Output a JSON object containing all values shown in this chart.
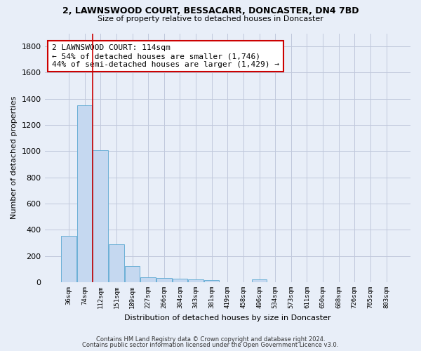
{
  "title1": "2, LAWNSWOOD COURT, BESSACARR, DONCASTER, DN4 7BD",
  "title2": "Size of property relative to detached houses in Doncaster",
  "xlabel": "Distribution of detached houses by size in Doncaster",
  "ylabel": "Number of detached properties",
  "categories": [
    "36sqm",
    "74sqm",
    "112sqm",
    "151sqm",
    "189sqm",
    "227sqm",
    "266sqm",
    "304sqm",
    "343sqm",
    "381sqm",
    "419sqm",
    "458sqm",
    "496sqm",
    "534sqm",
    "573sqm",
    "611sqm",
    "650sqm",
    "688sqm",
    "726sqm",
    "765sqm",
    "803sqm"
  ],
  "values": [
    355,
    1350,
    1010,
    290,
    125,
    40,
    32,
    28,
    20,
    15,
    0,
    0,
    20,
    0,
    0,
    0,
    0,
    0,
    0,
    0,
    0
  ],
  "bar_color": "#c5d8f0",
  "bar_edge_color": "#6aafd6",
  "vline_x": 1.5,
  "annotation_text": "2 LAWNSWOOD COURT: 114sqm\n← 54% of detached houses are smaller (1,746)\n44% of semi-detached houses are larger (1,429) →",
  "annotation_box_color": "#ffffff",
  "annotation_box_edge_color": "#cc0000",
  "vline_color": "#cc0000",
  "ylim": [
    0,
    1900
  ],
  "yticks": [
    0,
    200,
    400,
    600,
    800,
    1000,
    1200,
    1400,
    1600,
    1800
  ],
  "footer1": "Contains HM Land Registry data © Crown copyright and database right 2024.",
  "footer2": "Contains public sector information licensed under the Open Government Licence v3.0.",
  "bg_color": "#e8eef8",
  "plot_bg_color": "#e8eef8",
  "grid_color": "#c0c8dc"
}
